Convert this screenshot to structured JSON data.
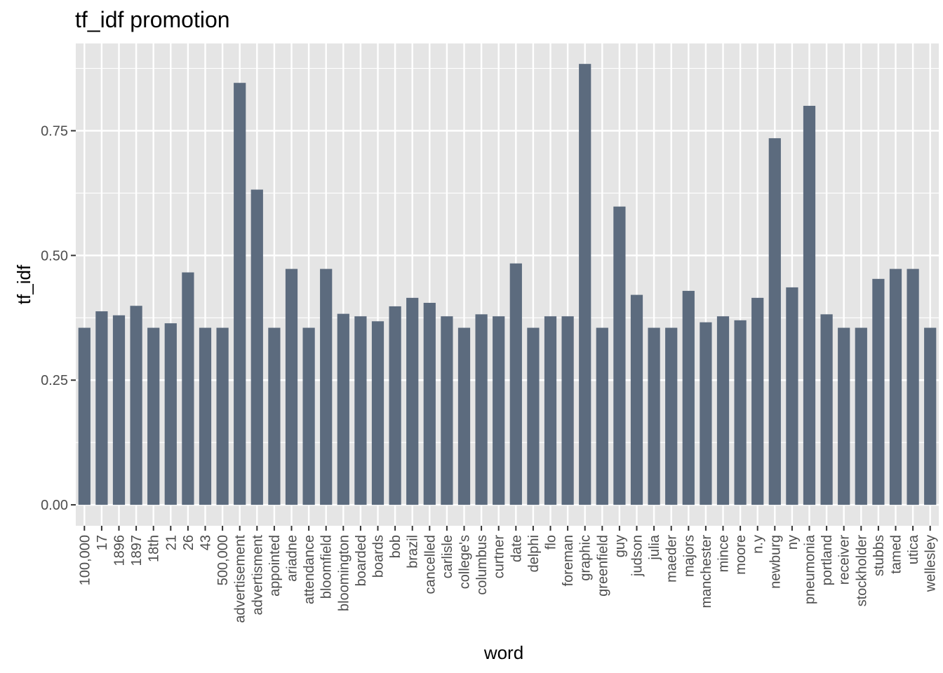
{
  "chart_data": {
    "type": "bar",
    "title": "tf_idf promotion",
    "xlabel": "word",
    "ylabel": "tf_idf",
    "ylim": [
      -0.042,
      0.925
    ],
    "yticks": [
      0,
      0.25,
      0.5,
      0.75
    ],
    "ytick_labels": [
      "0.00",
      "0.25",
      "0.50",
      "0.75"
    ],
    "grid": true,
    "bar_color": "#5c6b7e",
    "panel_color": "#e5e5e5",
    "grid_color": "#ffffff",
    "categories": [
      "100,000",
      "17",
      "1896",
      "1897",
      "18th",
      "21",
      "26",
      "43",
      "500,000",
      "advertisement",
      "advertisment",
      "appointed",
      "ariadne",
      "attendance",
      "bloomfield",
      "bloomington",
      "boarded",
      "boards",
      "bob",
      "brazil",
      "cancelled",
      "carlisle",
      "college's",
      "columbus",
      "curtner",
      "date",
      "delphi",
      "flo",
      "foreman",
      "graphic",
      "greenfield",
      "guy",
      "judson",
      "julia",
      "maeder",
      "majors",
      "manchester",
      "mince",
      "moore",
      "n.y",
      "newburg",
      "ny",
      "pneumonia",
      "portland",
      "receiver",
      "stockholder",
      "stubbs",
      "tamed",
      "utica",
      "wellesley"
    ],
    "values": [
      0.355,
      0.388,
      0.38,
      0.399,
      0.355,
      0.364,
      0.466,
      0.355,
      0.355,
      0.846,
      0.632,
      0.355,
      0.473,
      0.355,
      0.473,
      0.383,
      0.378,
      0.368,
      0.398,
      0.415,
      0.405,
      0.378,
      0.355,
      0.382,
      0.378,
      0.484,
      0.355,
      0.378,
      0.378,
      0.884,
      0.355,
      0.598,
      0.421,
      0.355,
      0.355,
      0.429,
      0.366,
      0.378,
      0.37,
      0.415,
      0.735,
      0.436,
      0.8,
      0.382,
      0.355,
      0.355,
      0.453,
      0.473,
      0.473,
      0.355
    ]
  }
}
